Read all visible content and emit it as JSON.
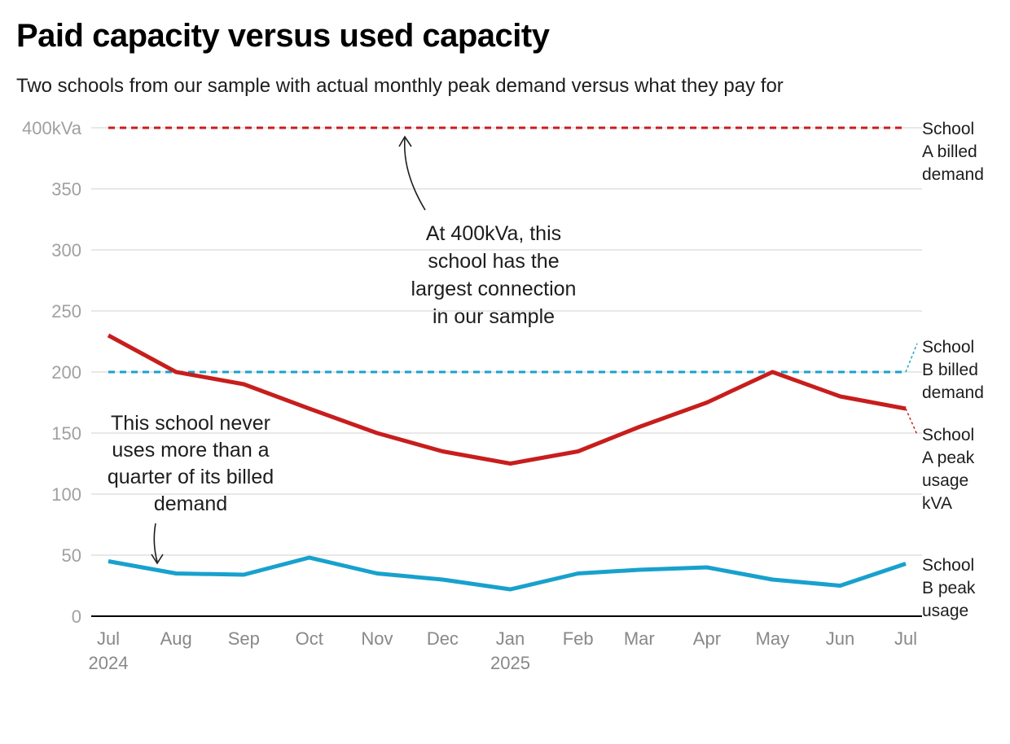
{
  "title": "Paid capacity versus used capacity",
  "subtitle": "Two schools from our sample with actual monthly peak demand versus what they pay for",
  "chart_data": {
    "type": "line",
    "title": "Paid capacity versus used capacity",
    "subtitle": "Two schools from our sample with actual monthly peak demand versus what they pay for",
    "x": [
      "2024-07",
      "2024-08",
      "2024-09",
      "2024-10",
      "2024-11",
      "2024-12",
      "2025-01",
      "2025-02",
      "2025-03",
      "2025-04",
      "2025-05",
      "2025-06",
      "2025-07"
    ],
    "x_tick_labels": [
      [
        "Jul",
        "2024"
      ],
      [
        "Aug"
      ],
      [
        "Sep"
      ],
      [
        "Oct"
      ],
      [
        "Nov"
      ],
      [
        "Dec"
      ],
      [
        "Jan",
        "2025"
      ],
      [
        "Feb"
      ],
      [
        "Mar"
      ],
      [
        "Apr"
      ],
      [
        "May"
      ],
      [
        "Jun"
      ],
      [
        "Jul"
      ]
    ],
    "y_ticks": [
      0,
      50,
      100,
      150,
      200,
      250,
      300,
      350,
      400
    ],
    "y_tick_labels": [
      "0",
      "50",
      "100",
      "150",
      "200",
      "250",
      "300",
      "350",
      "400kVa"
    ],
    "ylim": [
      0,
      400
    ],
    "grid": true,
    "series": [
      {
        "name": "School A billed demand",
        "label_lines": [
          "School",
          "A billed",
          "demand"
        ],
        "color": "#c71e1d",
        "style": "dashed",
        "values": [
          400,
          400,
          400,
          400,
          400,
          400,
          400,
          400,
          400,
          400,
          400,
          400,
          400
        ]
      },
      {
        "name": "School B billed demand",
        "label_lines": [
          "School",
          "B billed",
          "demand"
        ],
        "color": "#18a1cd",
        "style": "dashed",
        "values": [
          200,
          200,
          200,
          200,
          200,
          200,
          200,
          200,
          200,
          200,
          200,
          200,
          200
        ]
      },
      {
        "name": "School A peak usage kVA",
        "label_lines": [
          "School",
          "A peak",
          "usage",
          "kVA"
        ],
        "color": "#c71e1d",
        "style": "solid",
        "values": [
          230,
          200,
          190,
          170,
          150,
          135,
          125,
          135,
          155,
          175,
          200,
          180,
          170
        ]
      },
      {
        "name": "School B peak usage",
        "label_lines": [
          "School",
          "B peak",
          "usage"
        ],
        "color": "#18a1cd",
        "style": "solid",
        "values": [
          45,
          35,
          34,
          48,
          35,
          30,
          22,
          35,
          38,
          40,
          30,
          25,
          43
        ]
      }
    ],
    "annotations": [
      {
        "lines": [
          "At 400kVa, this",
          "school has the",
          "largest connection",
          "in our sample"
        ]
      },
      {
        "lines": [
          "This school never",
          "uses more than a",
          "quarter of its billed",
          "demand"
        ]
      }
    ]
  }
}
